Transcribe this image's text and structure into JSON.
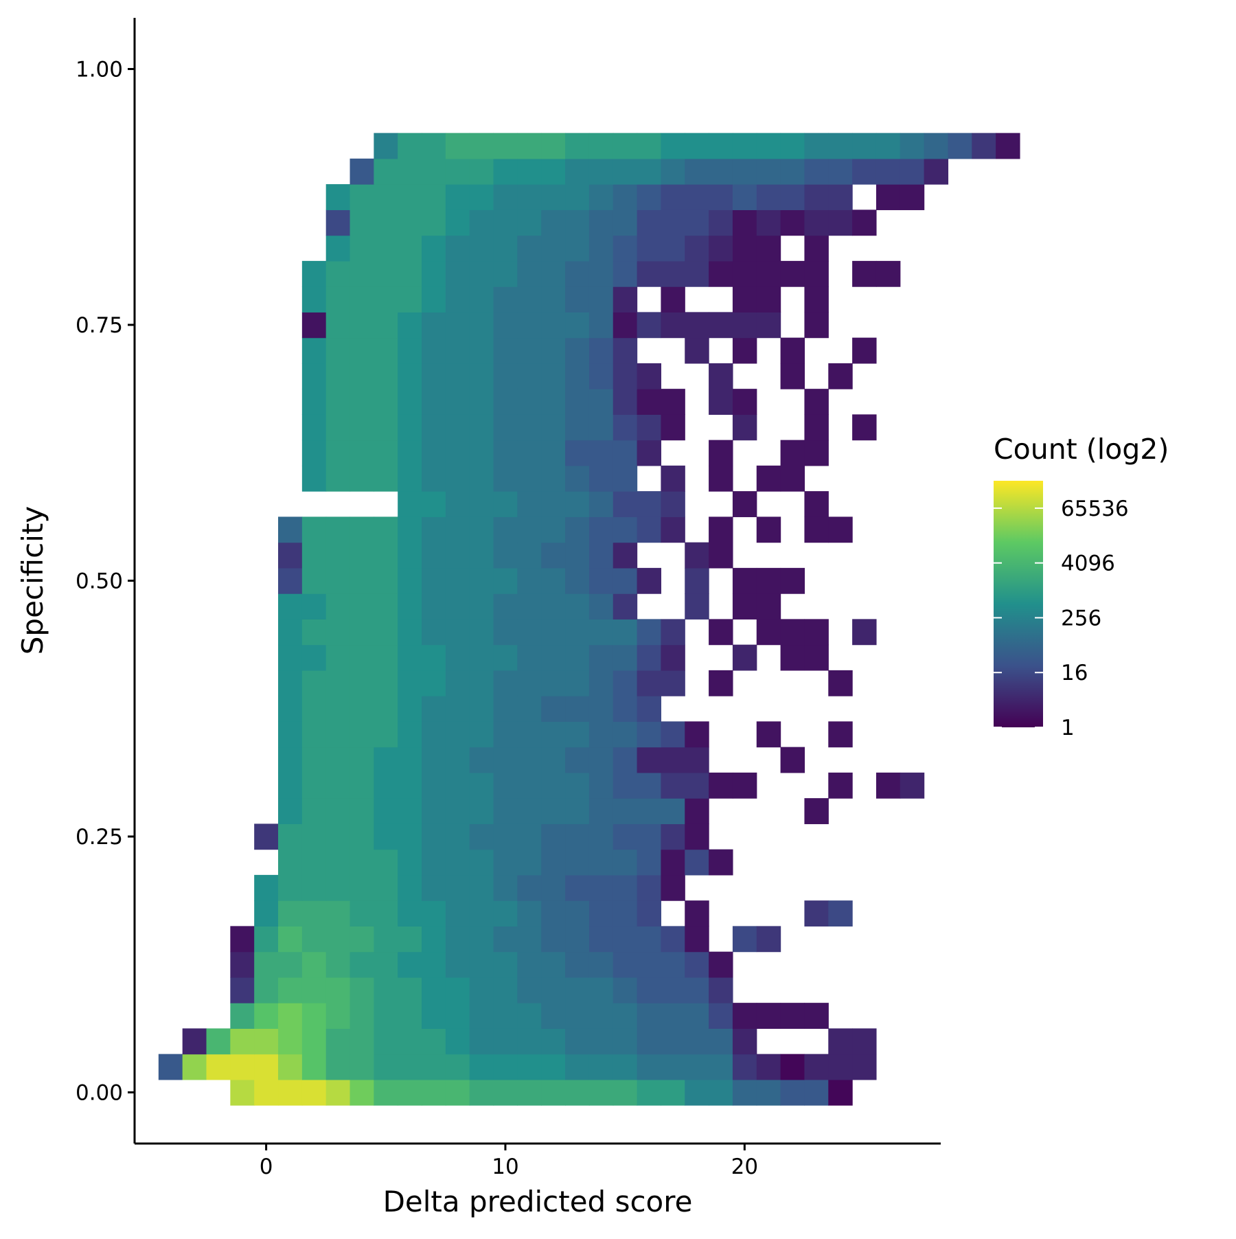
{
  "chart_data": {
    "type": "heatmap",
    "xlabel": "Delta predicted score",
    "ylabel": "Specificity",
    "xlim": [
      -5.5,
      28.2
    ],
    "ylim": [
      -0.05,
      1.05
    ],
    "x_ticks": [
      0,
      10,
      20
    ],
    "x_tick_labels": [
      "0",
      "10",
      "20"
    ],
    "y_ticks": [
      0.0,
      0.25,
      0.5,
      0.75,
      1.0
    ],
    "y_tick_labels": [
      "0.00",
      "0.25",
      "0.50",
      "0.75",
      "1.00"
    ],
    "bin_width_x": 1.0,
    "bin_height_y": 0.025,
    "x_start": -4.0,
    "color_scale": "viridis",
    "colors_low_to_high": [
      "#440154",
      "#3b528b",
      "#21908c",
      "#5dc963",
      "#fde725"
    ],
    "legend": {
      "title": "Count (log2)",
      "position": "right",
      "tick_values": [
        1,
        16,
        256,
        4096,
        65536
      ],
      "tick_labels": [
        "1",
        "16",
        "256",
        "4096",
        "65536"
      ],
      "max_value": 262144
    },
    "cell_value_unit": "log2(count)",
    "grid": false,
    "rows": [
      {
        "y": 0.0,
        "cells": "...ghhhgeccccbbbbbbbaa886655x"
      },
      {
        "y": 0.025,
        "cells": "5fhhhfdbbaaaa9999888777732x222"
      },
      {
        "y": 0.05,
        "cells": ".2cffedbbaaa9888877766662...22"
      },
      {
        "y": 0.075,
        "cells": "...bdedcbaa99888777766641111"
      },
      {
        "y": 0.1,
        "cells": "...3bcccbaa9988777765553"
      },
      {
        "y": 0.125,
        "cells": "...2bbcbaa99888776655541"
      },
      {
        "y": 0.15,
        "cells": "...1acbbbaa988776655541.43"
      },
      {
        "y": 0.175,
        "cells": "....9bbbaa99888766554.1....34"
      },
      {
        "y": 0.2,
        "cells": "....9aaaaa988876655541..."
      },
      {
        "y": 0.225,
        "cells": ".....aaaaa98887766665141"
      },
      {
        "y": 0.25,
        "cells": "....3aaaa99887776665531..."
      },
      {
        "y": 0.275,
        "cells": ".....9aaa99888777766661....1"
      },
      {
        "y": 0.3,
        "cells": ".....9aaa9988877776553311...1.12"
      },
      {
        "y": 0.325,
        "cells": ".....9aaa99887777665222...1"
      },
      {
        "y": 0.35,
        "cells": ".....9aaaa9888777766541..1..1"
      },
      {
        "y": 0.375,
        "cells": ".....9aaaa98887766654"
      },
      {
        "y": 0.4,
        "cells": ".....9aaaa998877776533.1....1"
      },
      {
        "y": 0.425,
        "cells": ".....99aaa998887776642..2.11"
      },
      {
        "y": 0.45,
        "cells": ".....9aaaa988877777753.1.111.2"
      },
      {
        "y": 0.475,
        "cells": ".....99aaa9888777763..3.11"
      },
      {
        "y": 0.5,
        "cells": ".....4aaaa98888776552.3.111"
      },
      {
        "y": 0.525,
        "cells": ".....3aaaa9888776652..21."
      },
      {
        "y": 0.55,
        "cells": ".....6aaaa988877765542.1.1.11"
      },
      {
        "y": 0.575,
        "cells": "..........998887776443..1..1"
      },
      {
        "y": 0.6,
        "cells": "......9aaa9888777655.2.1.11"
      },
      {
        "y": 0.625,
        "cells": "......9aaa98887775552..1..11"
      },
      {
        "y": 0.65,
        "cells": "......9aaa988877766431..2..1.1"
      },
      {
        "y": 0.675,
        "cells": "......9aaa988877766311.21..1"
      },
      {
        "y": 0.7,
        "cells": "......9aaa98887776532..2..1.1"
      },
      {
        "y": 0.725,
        "cells": "......9aaa9888777653..2.1.1..1"
      },
      {
        "y": 0.75,
        "cells": "......1aaa9888777761322222.1"
      },
      {
        "y": 0.775,
        "cells": "......9aaaa988777662.1..11.1"
      },
      {
        "y": 0.8,
        "cells": "......9aaaa98887766533311111.11"
      },
      {
        "y": 0.825,
        "cells": ".......9aaa988877765443211.1"
      },
      {
        "y": 0.85,
        "cells": ".......4aaaa988877664443121221"
      },
      {
        "y": 0.875,
        "cells": ".......9aaaa99888876544454433.11"
      },
      {
        "y": 0.9,
        "cells": "........5aaaaa9998888766666554442"
      },
      {
        "y": 0.925,
        "cells": ".........8aabbbbbaaaa999999888876531"
      }
    ]
  }
}
